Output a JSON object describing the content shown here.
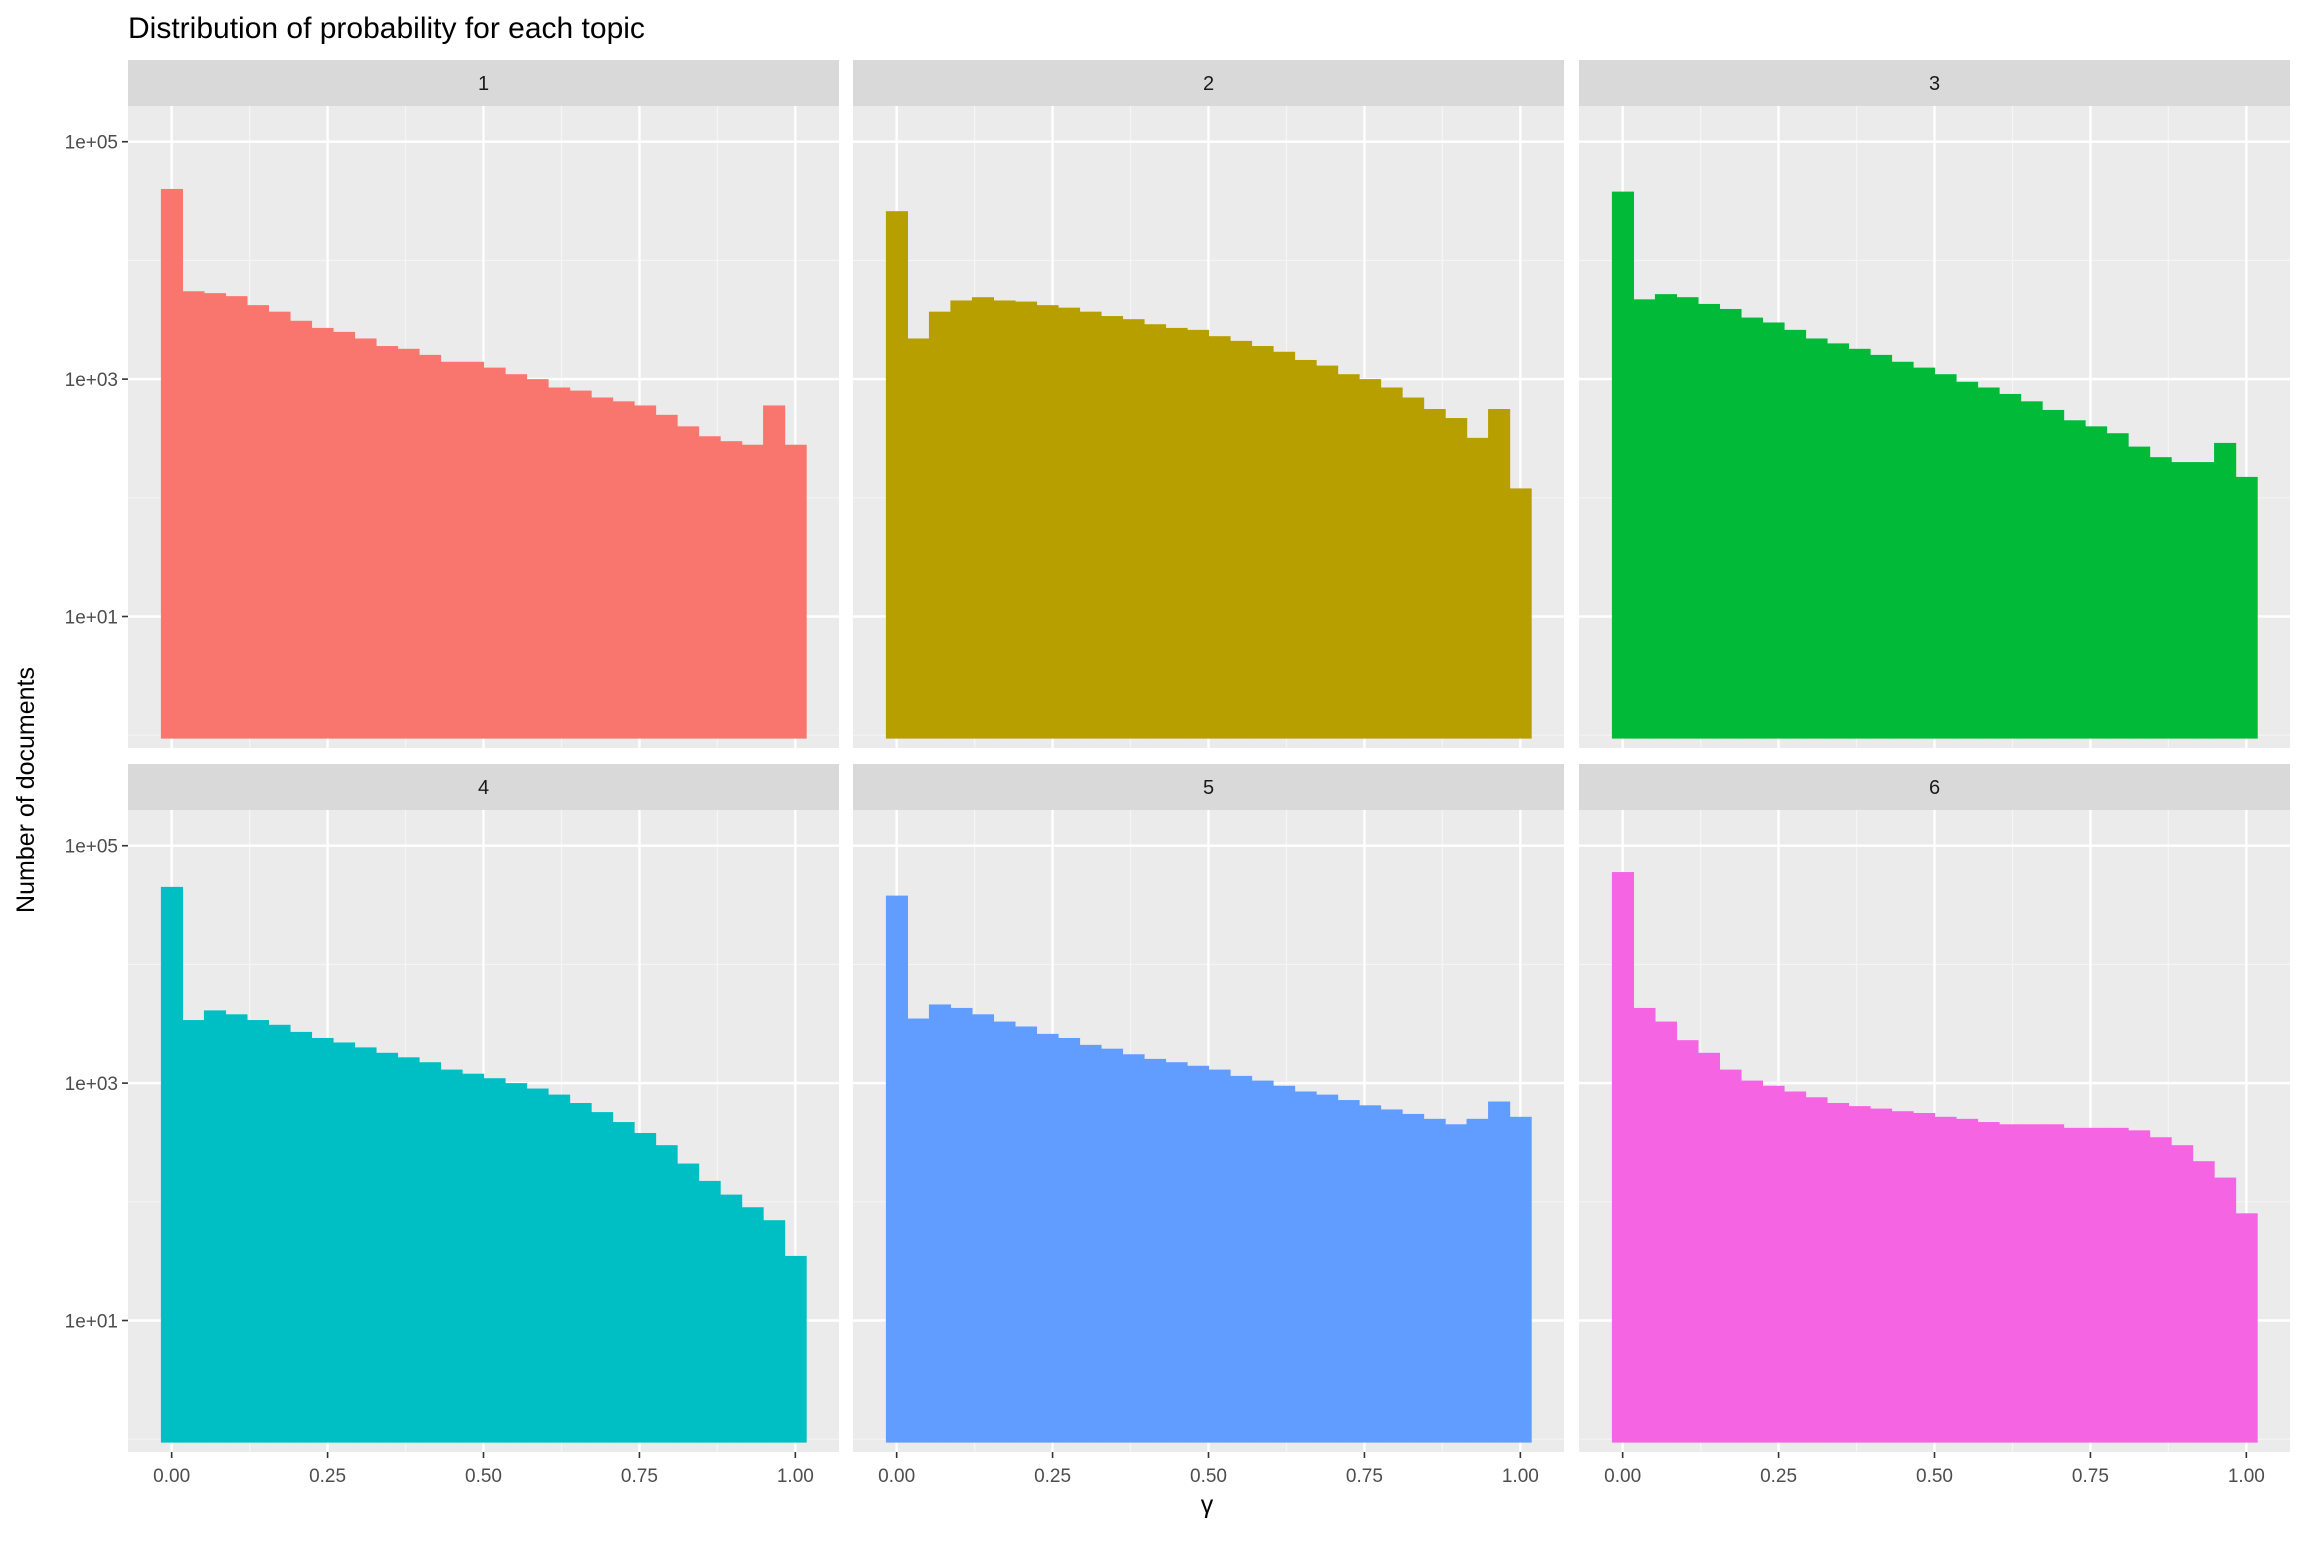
{
  "chart_data": {
    "type": "bar",
    "title": "Distribution of probability for each topic",
    "xlabel": "γ",
    "ylabel": "Number of documents",
    "y_scale": "log10",
    "ylim": [
      0.78,
      200000
    ],
    "xlim": [
      -0.07,
      1.07
    ],
    "x_ticks": [
      0,
      0.25,
      0.5,
      0.75,
      1
    ],
    "x_tick_labels": [
      "0.00",
      "0.25",
      "0.50",
      "0.75",
      "1.00"
    ],
    "y_ticks": [
      10,
      1000,
      100000
    ],
    "y_tick_labels": [
      "1e+01",
      "1e+03",
      "1e+05"
    ],
    "bin_centers": [
      0,
      0.0345,
      0.069,
      0.1034,
      0.1379,
      0.1724,
      0.2069,
      0.2414,
      0.2759,
      0.3103,
      0.3448,
      0.3793,
      0.4138,
      0.4483,
      0.4828,
      0.5172,
      0.5517,
      0.5862,
      0.6207,
      0.6552,
      0.6897,
      0.7241,
      0.7586,
      0.7931,
      0.8276,
      0.8621,
      0.8966,
      0.931,
      0.9655,
      1
    ],
    "bin_width": 0.0345,
    "grid": true,
    "legend": "none",
    "facet_layout": "2 rows x 3 columns",
    "series": [
      {
        "name": "1",
        "color": "#F8766D",
        "values": [
          40000,
          5500,
          5300,
          5000,
          4200,
          3700,
          3100,
          2700,
          2500,
          2200,
          1900,
          1800,
          1600,
          1400,
          1400,
          1250,
          1100,
          1000,
          850,
          800,
          700,
          650,
          600,
          500,
          400,
          330,
          300,
          280,
          600,
          280
        ]
      },
      {
        "name": "2",
        "color": "#B79F00",
        "values": [
          26000,
          2200,
          3700,
          4600,
          4900,
          4600,
          4500,
          4200,
          4000,
          3700,
          3400,
          3200,
          2900,
          2700,
          2600,
          2300,
          2100,
          1900,
          1700,
          1450,
          1300,
          1100,
          1000,
          850,
          700,
          560,
          470,
          320,
          560,
          120
        ]
      },
      {
        "name": "3",
        "color": "#00BA38",
        "values": [
          38000,
          4700,
          5200,
          4900,
          4300,
          3900,
          3300,
          3000,
          2600,
          2200,
          2000,
          1800,
          1600,
          1400,
          1250,
          1100,
          950,
          850,
          750,
          650,
          550,
          450,
          400,
          350,
          270,
          220,
          200,
          200,
          290,
          150
        ]
      },
      {
        "name": "4",
        "color": "#00BFC4",
        "values": [
          45000,
          3400,
          4100,
          3800,
          3400,
          3100,
          2700,
          2400,
          2200,
          2000,
          1800,
          1650,
          1500,
          1300,
          1200,
          1100,
          1000,
          900,
          800,
          680,
          570,
          470,
          380,
          300,
          210,
          150,
          115,
          90,
          70,
          35
        ]
      },
      {
        "name": "5",
        "color": "#619CFF",
        "values": [
          38000,
          3500,
          4600,
          4300,
          3800,
          3300,
          3000,
          2600,
          2400,
          2100,
          1950,
          1750,
          1600,
          1500,
          1400,
          1300,
          1150,
          1050,
          950,
          850,
          800,
          720,
          650,
          600,
          550,
          500,
          450,
          500,
          700,
          520
        ]
      },
      {
        "name": "6",
        "color": "#F564E3",
        "values": [
          60000,
          4300,
          3300,
          2300,
          1800,
          1300,
          1050,
          950,
          850,
          760,
          680,
          640,
          610,
          580,
          560,
          520,
          500,
          470,
          450,
          450,
          450,
          420,
          420,
          420,
          400,
          350,
          300,
          220,
          160,
          80
        ]
      }
    ]
  }
}
